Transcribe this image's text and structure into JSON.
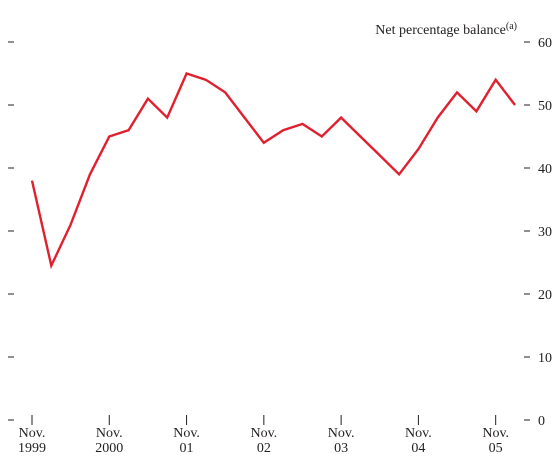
{
  "chart_data": {
    "type": "line",
    "ylabel": "Net percentage balance",
    "ylabel_note": "(a)",
    "ylim": [
      0,
      60
    ],
    "yticks": [
      0,
      10,
      20,
      30,
      40,
      50,
      60
    ],
    "x_tick_labels": [
      {
        "line1": "Nov.",
        "line2": "1999",
        "x": 0
      },
      {
        "line1": "Nov.",
        "line2": "2000",
        "x": 4
      },
      {
        "line1": "Nov.",
        "line2": "01",
        "x": 8
      },
      {
        "line1": "Nov.",
        "line2": "02",
        "x": 12
      },
      {
        "line1": "Nov.",
        "line2": "03",
        "x": 16
      },
      {
        "line1": "Nov.",
        "line2": "04",
        "x": 20
      },
      {
        "line1": "Nov.",
        "line2": "05",
        "x": 24
      }
    ],
    "xlim": [
      0,
      25
    ],
    "grid": false,
    "series": [
      {
        "color": "#e0202e",
        "x": [
          0,
          1,
          2,
          3,
          4,
          5,
          6,
          7,
          8,
          9,
          10,
          11,
          12,
          13,
          14,
          15,
          16,
          17,
          18,
          19,
          20,
          21,
          22,
          23,
          24,
          25
        ],
        "values": [
          38,
          24.5,
          31,
          39,
          45,
          46,
          51,
          48,
          55,
          54,
          52,
          48,
          44,
          46,
          47,
          45,
          48,
          45,
          42,
          39,
          43,
          48,
          52,
          49,
          54,
          50
        ]
      }
    ]
  }
}
